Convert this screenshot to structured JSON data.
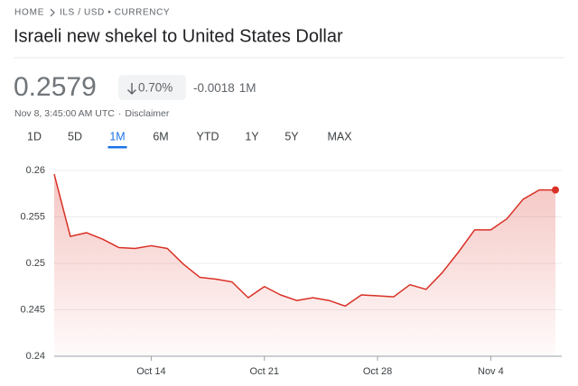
{
  "breadcrumb": {
    "home": "HOME",
    "current": "ILS / USD • CURRENCY"
  },
  "title": "Israeli new shekel to United States Dollar",
  "quote": {
    "price": "0.2579",
    "change_percent": "0.70%",
    "change": "-0.0018",
    "period": "1M",
    "timestamp": "Nov 8, 3:45:00 AM UTC",
    "separator": "·",
    "disclaimer": "Disclaimer"
  },
  "tabs": {
    "items": [
      "1D",
      "5D",
      "1M",
      "6M",
      "YTD",
      "1Y",
      "5Y",
      "MAX"
    ],
    "active": 2
  },
  "chart_data": {
    "type": "area",
    "categories": [
      null,
      null,
      null,
      null,
      null,
      null,
      "Oct 14",
      null,
      null,
      null,
      null,
      null,
      null,
      "Oct 21",
      null,
      null,
      null,
      null,
      null,
      null,
      "Oct 28",
      null,
      null,
      null,
      null,
      null,
      null,
      "Nov 4",
      null,
      null,
      null,
      null
    ],
    "series": [
      {
        "color": "#d93025",
        "values": [
          0.2596,
          0.2529,
          0.2533,
          0.2526,
          0.2517,
          0.2516,
          0.2519,
          0.2516,
          0.2499,
          0.2485,
          0.2483,
          0.248,
          0.2463,
          0.2475,
          0.2466,
          0.246,
          0.2463,
          0.246,
          0.2454,
          0.2466,
          0.2465,
          0.2464,
          0.2477,
          0.2472,
          0.249,
          0.2512,
          0.2536,
          0.2536,
          0.2548,
          0.2569,
          0.2579,
          0.2579
        ]
      }
    ],
    "ylim": [
      0.24,
      0.26
    ],
    "yticks": [
      0.24,
      0.245,
      0.25,
      0.255,
      0.26
    ],
    "grid": true
  }
}
